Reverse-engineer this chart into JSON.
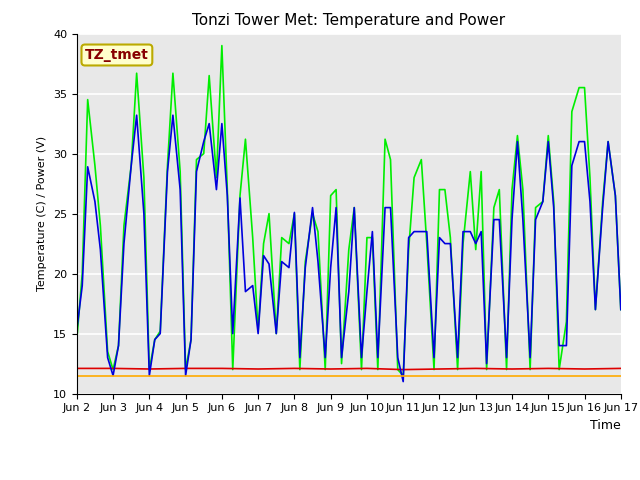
{
  "title": "Tonzi Tower Met: Temperature and Power",
  "xlabel": "Time",
  "ylabel": "Temperature (C) / Power (V)",
  "ylim": [
    10,
    40
  ],
  "xlim": [
    0,
    15
  ],
  "fig_facecolor": "#ffffff",
  "plot_facecolor": "#e8e8e8",
  "annotation_text": "TZ_tmet",
  "annotation_bg": "#ffffcc",
  "annotation_border": "#bbaa00",
  "annotation_text_color": "#880000",
  "xtick_labels": [
    "Jun 2",
    "Jun 3",
    "Jun 4",
    "Jun 5",
    "Jun 6",
    "Jun 7",
    "Jun 8",
    "Jun 9",
    "Jun 10",
    "Jun 11",
    "Jun 12",
    "Jun 13",
    "Jun 14",
    "Jun 15",
    "Jun 16",
    "Jun 17"
  ],
  "xtick_positions": [
    0,
    1,
    2,
    3,
    4,
    5,
    6,
    7,
    8,
    9,
    10,
    11,
    12,
    13,
    14,
    15
  ],
  "panel_t_color": "#00ee00",
  "battery_v_color": "#dd0000",
  "air_t_color": "#0000dd",
  "solar_v_color": "#ffaa00",
  "panel_t_x": [
    0,
    0.15,
    0.3,
    0.5,
    0.65,
    0.85,
    1.0,
    1.15,
    1.3,
    1.5,
    1.65,
    1.85,
    2.0,
    2.15,
    2.3,
    2.5,
    2.65,
    2.85,
    3.0,
    3.15,
    3.3,
    3.5,
    3.65,
    3.85,
    4.0,
    4.15,
    4.3,
    4.5,
    4.65,
    4.85,
    5.0,
    5.15,
    5.3,
    5.5,
    5.65,
    5.85,
    6.0,
    6.15,
    6.3,
    6.5,
    6.65,
    6.85,
    7.0,
    7.15,
    7.3,
    7.5,
    7.65,
    7.85,
    8.0,
    8.15,
    8.3,
    8.5,
    8.65,
    8.85,
    9.0,
    9.15,
    9.3,
    9.5,
    9.65,
    9.85,
    10.0,
    10.15,
    10.3,
    10.5,
    10.65,
    10.85,
    11.0,
    11.15,
    11.3,
    11.5,
    11.65,
    11.85,
    12.0,
    12.15,
    12.3,
    12.5,
    12.65,
    12.85,
    13.0,
    13.15,
    13.3,
    13.5,
    13.65,
    13.85,
    14.0,
    14.15,
    14.3,
    14.5,
    14.65,
    14.85,
    15.0
  ],
  "panel_t_y": [
    14.5,
    20.0,
    34.5,
    29.0,
    24.0,
    13.5,
    12.0,
    14.0,
    24.0,
    29.0,
    36.7,
    28.0,
    12.0,
    14.5,
    15.2,
    29.0,
    36.7,
    28.5,
    12.0,
    14.5,
    29.5,
    30.0,
    36.5,
    28.0,
    39.0,
    27.0,
    12.0,
    26.5,
    31.2,
    23.0,
    15.2,
    22.5,
    25.0,
    15.0,
    23.0,
    22.5,
    25.0,
    12.0,
    21.0,
    25.0,
    23.5,
    12.0,
    26.5,
    27.0,
    12.5,
    22.0,
    25.5,
    12.0,
    23.0,
    23.0,
    12.0,
    31.2,
    29.5,
    12.0,
    11.5,
    22.0,
    28.0,
    29.5,
    22.5,
    12.0,
    27.0,
    27.0,
    23.0,
    12.0,
    22.5,
    28.5,
    22.0,
    28.5,
    12.0,
    25.5,
    27.0,
    12.0,
    27.0,
    31.5,
    27.0,
    12.0,
    25.5,
    26.0,
    31.5,
    26.0,
    12.0,
    16.0,
    33.5,
    35.5,
    35.5,
    28.0,
    17.0,
    26.0,
    31.0,
    26.5,
    17.0
  ],
  "air_t_x": [
    0,
    0.15,
    0.3,
    0.5,
    0.65,
    0.85,
    1.0,
    1.15,
    1.3,
    1.5,
    1.65,
    1.85,
    2.0,
    2.15,
    2.3,
    2.5,
    2.65,
    2.85,
    3.0,
    3.15,
    3.3,
    3.5,
    3.65,
    3.85,
    4.0,
    4.15,
    4.3,
    4.5,
    4.65,
    4.85,
    5.0,
    5.15,
    5.3,
    5.5,
    5.65,
    5.85,
    6.0,
    6.15,
    6.3,
    6.5,
    6.65,
    6.85,
    7.0,
    7.15,
    7.3,
    7.5,
    7.65,
    7.85,
    8.0,
    8.15,
    8.3,
    8.5,
    8.65,
    8.85,
    9.0,
    9.15,
    9.3,
    9.5,
    9.65,
    9.85,
    10.0,
    10.15,
    10.3,
    10.5,
    10.65,
    10.85,
    11.0,
    11.15,
    11.3,
    11.5,
    11.65,
    11.85,
    12.0,
    12.15,
    12.3,
    12.5,
    12.65,
    12.85,
    13.0,
    13.15,
    13.3,
    13.5,
    13.65,
    13.85,
    14.0,
    14.15,
    14.3,
    14.5,
    14.65,
    14.85,
    15.0
  ],
  "air_t_y": [
    15.3,
    19.0,
    28.9,
    26.0,
    22.0,
    13.0,
    11.5,
    14.0,
    22.5,
    29.0,
    33.2,
    25.0,
    11.5,
    14.5,
    15.0,
    28.5,
    33.2,
    27.0,
    11.5,
    14.5,
    28.5,
    31.0,
    32.5,
    27.0,
    32.5,
    26.5,
    15.0,
    26.3,
    18.5,
    19.0,
    15.0,
    21.5,
    20.8,
    15.0,
    21.0,
    20.5,
    25.1,
    13.0,
    20.5,
    25.5,
    21.0,
    13.0,
    20.5,
    25.5,
    13.0,
    18.5,
    25.5,
    13.0,
    18.5,
    23.5,
    13.0,
    25.5,
    25.5,
    13.0,
    11.0,
    23.0,
    23.5,
    23.5,
    23.5,
    13.0,
    23.0,
    22.5,
    22.5,
    13.0,
    23.5,
    23.5,
    22.5,
    23.5,
    12.5,
    24.5,
    24.5,
    13.0,
    24.5,
    31.0,
    24.5,
    13.0,
    24.5,
    26.0,
    31.0,
    25.5,
    14.0,
    14.0,
    29.0,
    31.0,
    31.0,
    26.0,
    17.0,
    25.5,
    31.0,
    26.5,
    17.0
  ],
  "battery_v_x": [
    0,
    1,
    2,
    3,
    4,
    5,
    6,
    7,
    8,
    9,
    10,
    11,
    12,
    13,
    14,
    15
  ],
  "battery_v_y": [
    12.1,
    12.1,
    12.05,
    12.1,
    12.1,
    12.05,
    12.1,
    12.05,
    12.1,
    12.0,
    12.05,
    12.1,
    12.05,
    12.1,
    12.05,
    12.1
  ],
  "solar_v_x": [
    0,
    1,
    2,
    3,
    4,
    5,
    6,
    7,
    8,
    9,
    10,
    11,
    12,
    13,
    14,
    15
  ],
  "solar_v_y": [
    11.5,
    11.5,
    11.5,
    11.5,
    11.5,
    11.5,
    11.5,
    11.5,
    11.5,
    11.5,
    11.5,
    11.5,
    11.5,
    11.5,
    11.5,
    11.5
  ],
  "line_width": 1.2,
  "legend_fontsize": 9,
  "title_fontsize": 11,
  "tick_fontsize": 8
}
